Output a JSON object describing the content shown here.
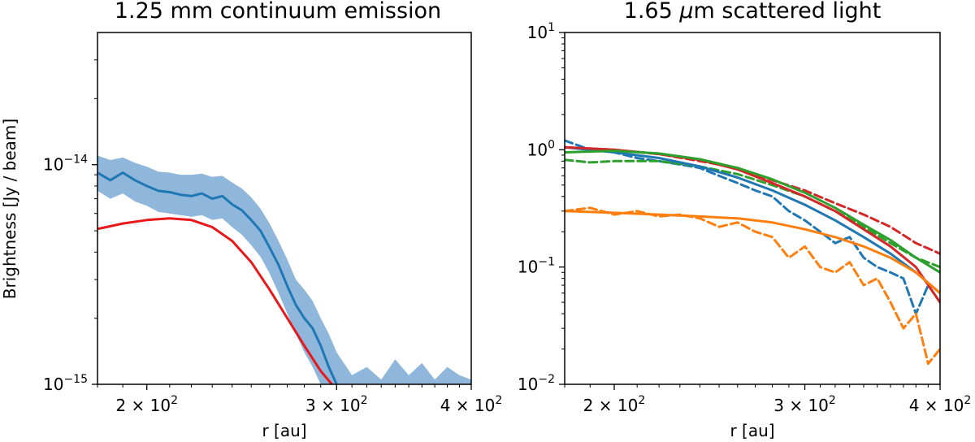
{
  "chart_data": [
    {
      "type": "line",
      "title": "1.25 mm continuum emission",
      "xlabel": "r [au]",
      "ylabel": "Brightness [Jy / beam]",
      "x_scale": "log",
      "y_scale": "log",
      "xlim": [
        180,
        400
      ],
      "ylim": [
        1e-15,
        4e-14
      ],
      "x_ticks": [
        {
          "value": 200,
          "label": "2 × 10",
          "exp": "2"
        },
        {
          "value": 300,
          "label": "3 × 10",
          "exp": "2"
        },
        {
          "value": 400,
          "label": "4 × 10",
          "exp": "2"
        }
      ],
      "y_ticks": [
        {
          "value": 1e-15,
          "label": "10",
          "exp": "−15"
        },
        {
          "value": 1e-14,
          "label": "10",
          "exp": "−14"
        }
      ],
      "series": [
        {
          "style": "line-with-band",
          "color": "#1f77b4",
          "band_color": "#8fb7dc",
          "x": [
            180,
            185,
            190,
            195,
            200,
            205,
            210,
            215,
            220,
            225,
            230,
            235,
            240,
            245,
            250,
            255,
            260,
            265,
            270,
            275,
            280,
            285,
            290,
            295,
            300
          ],
          "y": [
            9.2e-15,
            8.5e-15,
            9.2e-15,
            8.5e-15,
            8e-15,
            7.6e-15,
            7.5e-15,
            7.3e-15,
            7.2e-15,
            7.4e-15,
            7e-15,
            7.2e-15,
            6.6e-15,
            6.2e-15,
            5.6e-15,
            5e-15,
            4.2e-15,
            3.5e-15,
            2.8e-15,
            2.3e-15,
            2e-15,
            1.8e-15,
            1.5e-15,
            1.2e-15,
            1e-15
          ],
          "y_low": [
            7.6e-15,
            7e-15,
            7.4e-15,
            6.8e-15,
            6.5e-15,
            6.1e-15,
            6e-15,
            5.9e-15,
            5.8e-15,
            5.9e-15,
            5.6e-15,
            5.7e-15,
            5.2e-15,
            4.8e-15,
            4.3e-15,
            3.8e-15,
            3.2e-15,
            2.6e-15,
            2.1e-15,
            1.7e-15,
            1.4e-15,
            1.2e-15,
            1e-15,
            1e-15,
            1e-15
          ],
          "y_high": [
            1.1e-14,
            1.05e-14,
            1.08e-14,
            1.02e-14,
            9.8e-15,
            9.3e-15,
            9.2e-15,
            9e-15,
            9e-15,
            9.1e-15,
            8.8e-15,
            8.9e-15,
            8.3e-15,
            7.8e-15,
            7.1e-15,
            6.3e-15,
            5.4e-15,
            4.5e-15,
            3.7e-15,
            3e-15,
            2.7e-15,
            2.4e-15,
            2e-15,
            1.7e-15,
            1.4e-15
          ],
          "band_tail_x": [
            300,
            310,
            320,
            330,
            340,
            350,
            360,
            370,
            380,
            390,
            400
          ],
          "band_tail_y": [
            1.4e-15,
            1.1e-15,
            1.2e-15,
            1.05e-15,
            1.3e-15,
            1.1e-15,
            1.25e-15,
            1.05e-15,
            1.2e-15,
            1.1e-15,
            1.05e-15
          ]
        },
        {
          "style": "line",
          "color": "#e8191b",
          "x": [
            180,
            190,
            200,
            210,
            220,
            230,
            240,
            250,
            260,
            270,
            280,
            290,
            297
          ],
          "y": [
            5.1e-15,
            5.4e-15,
            5.6e-15,
            5.7e-15,
            5.6e-15,
            5.2e-15,
            4.5e-15,
            3.6e-15,
            2.7e-15,
            2e-15,
            1.5e-15,
            1.15e-15,
            1e-15
          ]
        }
      ]
    },
    {
      "type": "line",
      "title": "1.65 μm scattered light",
      "xlabel": "r [au]",
      "ylabel": "",
      "x_scale": "log",
      "y_scale": "log",
      "xlim": [
        180,
        400
      ],
      "ylim": [
        0.01,
        10
      ],
      "x_ticks": [
        {
          "value": 200,
          "label": "2 × 10",
          "exp": "2"
        },
        {
          "value": 300,
          "label": "3 × 10",
          "exp": "2"
        },
        {
          "value": 400,
          "label": "4 × 10",
          "exp": "2"
        }
      ],
      "y_ticks": [
        {
          "value": 0.01,
          "label": "10",
          "exp": "−2"
        },
        {
          "value": 0.1,
          "label": "10",
          "exp": "−1"
        },
        {
          "value": 1,
          "label": "10",
          "exp": "0"
        },
        {
          "value": 10,
          "label": "10",
          "exp": "1"
        }
      ],
      "series": [
        {
          "style": "dashed",
          "color": "#1f77b4",
          "x": [
            180,
            190,
            200,
            210,
            220,
            230,
            240,
            250,
            260,
            270,
            280,
            290,
            300,
            310,
            320,
            330,
            340,
            350,
            360,
            370,
            380,
            390,
            400
          ],
          "y": [
            1.2,
            1.0,
            0.95,
            0.85,
            0.8,
            0.75,
            0.7,
            0.6,
            0.52,
            0.45,
            0.4,
            0.3,
            0.25,
            0.2,
            0.16,
            0.18,
            0.12,
            0.1,
            0.09,
            0.08,
            0.04,
            0.07,
            0.05
          ]
        },
        {
          "style": "dashed",
          "color": "#d62728",
          "x": [
            180,
            200,
            220,
            240,
            260,
            280,
            300,
            320,
            340,
            360,
            380,
            400
          ],
          "y": [
            1.05,
            1.0,
            0.92,
            0.8,
            0.7,
            0.55,
            0.45,
            0.35,
            0.28,
            0.22,
            0.16,
            0.13
          ]
        },
        {
          "style": "dashed",
          "color": "#2ca02c",
          "x": [
            180,
            190,
            200,
            220,
            240,
            260,
            280,
            300,
            320,
            340,
            360,
            380,
            400
          ],
          "y": [
            0.82,
            0.78,
            0.8,
            0.8,
            0.72,
            0.62,
            0.5,
            0.4,
            0.3,
            0.22,
            0.16,
            0.12,
            0.1
          ]
        },
        {
          "style": "dashed",
          "color": "#ff7f0e",
          "x": [
            180,
            190,
            200,
            210,
            220,
            230,
            240,
            250,
            260,
            270,
            280,
            290,
            300,
            310,
            320,
            330,
            340,
            350,
            360,
            370,
            380,
            390,
            400
          ],
          "y": [
            0.3,
            0.32,
            0.28,
            0.3,
            0.27,
            0.28,
            0.26,
            0.22,
            0.24,
            0.2,
            0.18,
            0.12,
            0.15,
            0.1,
            0.09,
            0.11,
            0.07,
            0.08,
            0.05,
            0.03,
            0.04,
            0.015,
            0.02
          ]
        },
        {
          "style": "line",
          "color": "#1f77b4",
          "x": [
            180,
            200,
            220,
            240,
            260,
            280,
            300,
            320,
            340,
            360,
            380,
            400
          ],
          "y": [
            1.05,
            0.95,
            0.85,
            0.72,
            0.58,
            0.45,
            0.34,
            0.25,
            0.18,
            0.13,
            0.09,
            0.06
          ]
        },
        {
          "style": "line",
          "color": "#d62728",
          "x": [
            180,
            200,
            220,
            240,
            260,
            280,
            300,
            320,
            340,
            360,
            380,
            400
          ],
          "y": [
            1.05,
            1.0,
            0.92,
            0.82,
            0.68,
            0.52,
            0.4,
            0.3,
            0.21,
            0.15,
            0.1,
            0.05
          ]
        },
        {
          "style": "line",
          "color": "#2ca02c",
          "x": [
            180,
            200,
            220,
            240,
            260,
            280,
            300,
            320,
            340,
            360,
            380,
            400
          ],
          "y": [
            0.95,
            0.98,
            0.93,
            0.83,
            0.7,
            0.56,
            0.43,
            0.32,
            0.23,
            0.17,
            0.12,
            0.09
          ]
        },
        {
          "style": "line",
          "color": "#ff7f0e",
          "x": [
            180,
            200,
            220,
            240,
            260,
            280,
            300,
            320,
            340,
            360,
            380,
            400
          ],
          "y": [
            0.3,
            0.29,
            0.28,
            0.27,
            0.26,
            0.24,
            0.21,
            0.18,
            0.15,
            0.12,
            0.09,
            0.06
          ]
        }
      ]
    }
  ]
}
